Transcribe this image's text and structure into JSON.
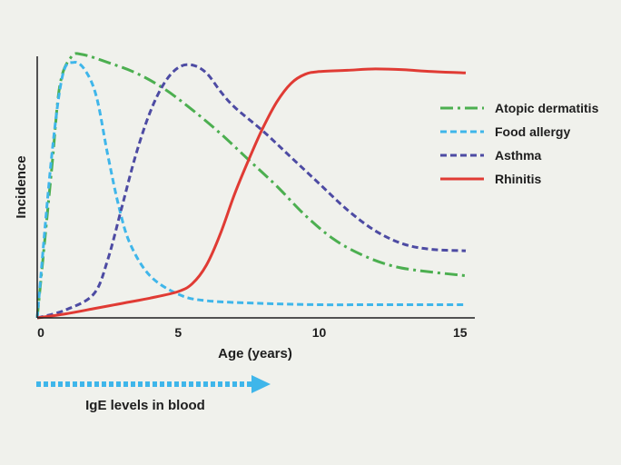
{
  "chart_data": {
    "type": "line",
    "title": "",
    "xlabel": "Age (years)",
    "ylabel": "Incidence",
    "xlim": [
      0,
      15.2
    ],
    "ylim": [
      0,
      1
    ],
    "x_ticks": [
      0,
      5,
      10,
      15
    ],
    "grid": false,
    "legend_position": "top-right",
    "series": [
      {
        "name": "Atopic dermatitis",
        "color": "#4caf50",
        "dash": "dash-dot",
        "points": [
          [
            0,
            0
          ],
          [
            0.5,
            0.55
          ],
          [
            0.8,
            0.88
          ],
          [
            1.2,
            0.99
          ],
          [
            1.6,
            1.0
          ],
          [
            2.5,
            0.97
          ],
          [
            3.5,
            0.93
          ],
          [
            4.5,
            0.87
          ],
          [
            5.5,
            0.79
          ],
          [
            6.5,
            0.7
          ],
          [
            7.5,
            0.6
          ],
          [
            8.5,
            0.5
          ],
          [
            9.5,
            0.39
          ],
          [
            10.5,
            0.3
          ],
          [
            11.5,
            0.24
          ],
          [
            12.5,
            0.2
          ],
          [
            13.5,
            0.18
          ],
          [
            15.2,
            0.16
          ]
        ]
      },
      {
        "name": "Food allergy",
        "color": "#3fb6ea",
        "dash": "dash",
        "points": [
          [
            0,
            0
          ],
          [
            0.5,
            0.6
          ],
          [
            0.9,
            0.92
          ],
          [
            1.3,
            0.97
          ],
          [
            1.7,
            0.94
          ],
          [
            2.1,
            0.84
          ],
          [
            2.5,
            0.62
          ],
          [
            2.9,
            0.42
          ],
          [
            3.3,
            0.28
          ],
          [
            4,
            0.16
          ],
          [
            5,
            0.09
          ],
          [
            6,
            0.065
          ],
          [
            8,
            0.055
          ],
          [
            10,
            0.05
          ],
          [
            12,
            0.05
          ],
          [
            15.2,
            0.05
          ]
        ]
      },
      {
        "name": "Asthma",
        "color": "#4d4ba3",
        "dash": "dash",
        "points": [
          [
            0,
            0
          ],
          [
            1,
            0.03
          ],
          [
            2,
            0.09
          ],
          [
            2.5,
            0.22
          ],
          [
            3,
            0.42
          ],
          [
            3.5,
            0.62
          ],
          [
            4,
            0.78
          ],
          [
            4.5,
            0.89
          ],
          [
            5,
            0.95
          ],
          [
            5.5,
            0.96
          ],
          [
            6,
            0.93
          ],
          [
            6.5,
            0.86
          ],
          [
            7,
            0.8
          ],
          [
            8,
            0.71
          ],
          [
            9,
            0.61
          ],
          [
            10,
            0.51
          ],
          [
            11,
            0.41
          ],
          [
            12,
            0.33
          ],
          [
            13,
            0.28
          ],
          [
            14,
            0.26
          ],
          [
            15.2,
            0.255
          ]
        ]
      },
      {
        "name": "Rhinitis",
        "color": "#e03b34",
        "dash": "solid",
        "points": [
          [
            0,
            0
          ],
          [
            1,
            0.015
          ],
          [
            2,
            0.035
          ],
          [
            3,
            0.055
          ],
          [
            4,
            0.075
          ],
          [
            5,
            0.1
          ],
          [
            5.5,
            0.13
          ],
          [
            6,
            0.2
          ],
          [
            6.5,
            0.32
          ],
          [
            7,
            0.47
          ],
          [
            7.5,
            0.6
          ],
          [
            8,
            0.72
          ],
          [
            8.5,
            0.82
          ],
          [
            9,
            0.89
          ],
          [
            9.5,
            0.925
          ],
          [
            10,
            0.935
          ],
          [
            11,
            0.94
          ],
          [
            12,
            0.945
          ],
          [
            13,
            0.942
          ],
          [
            14,
            0.935
          ],
          [
            15.2,
            0.93
          ]
        ]
      }
    ]
  },
  "arrow": {
    "label": "IgE levels in blood",
    "color": "#3fb6ea"
  }
}
